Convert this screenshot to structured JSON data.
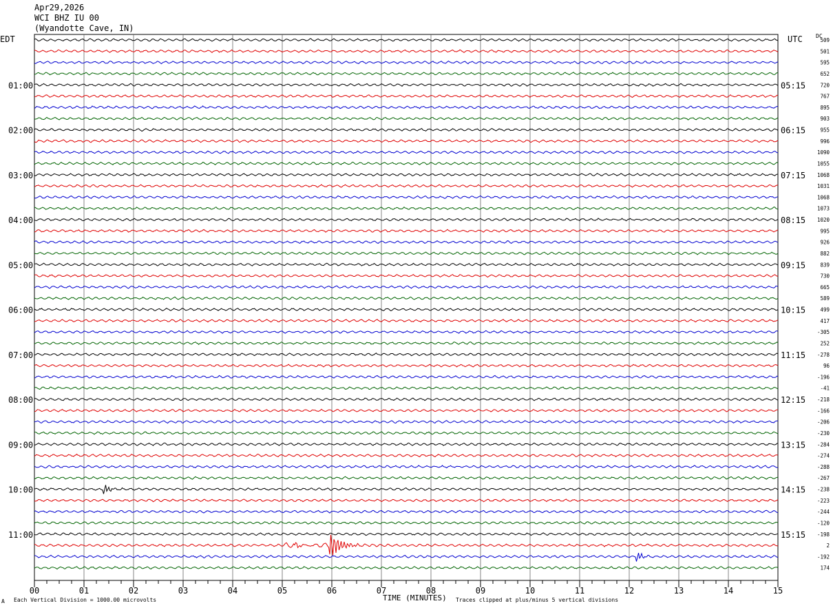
{
  "header": {
    "date": "Apr29,2026",
    "station": "WCI BHZ IU 00",
    "location": "(Wyandotte Cave, IN)"
  },
  "labels": {
    "left_tz": "EDT",
    "right_tz": "UTC",
    "dc": "DC"
  },
  "footer": {
    "mark": "A",
    "left": "Each Vertical Division = 1000.00 microvolts",
    "xlabel": "TIME (MINUTES)",
    "right": "Traces clipped at plus/minus 5 vertical divisions"
  },
  "chart_data": {
    "type": "line",
    "title": "WCI BHZ IU 00",
    "xlabel": "TIME (MINUTES)",
    "xlim": [
      0,
      15
    ],
    "x_ticks": [
      "00",
      "01",
      "02",
      "03",
      "04",
      "05",
      "06",
      "07",
      "08",
      "09",
      "10",
      "11",
      "12",
      "13",
      "14",
      "15"
    ],
    "left_hour_labels": [
      "01:00",
      "02:00",
      "03:00",
      "04:00",
      "05:00",
      "06:00",
      "07:00",
      "08:00",
      "09:00",
      "10:00",
      "11:00"
    ],
    "right_hour_labels": [
      "05:15",
      "06:15",
      "07:15",
      "08:15",
      "09:15",
      "10:15",
      "11:15",
      "12:15",
      "13:15",
      "14:15",
      "15:15"
    ],
    "trace_colors": [
      "#000000",
      "#e00000",
      "#0000d0",
      "#006400"
    ],
    "dc_offsets": [
      "509",
      "501",
      "595",
      "652",
      "720",
      "767",
      "895",
      "903",
      "955",
      "996",
      "1090",
      "1055",
      "1068",
      "1031",
      "1068",
      "1073",
      "1020",
      "995",
      "926",
      "882",
      "839",
      "730",
      "665",
      "589",
      "499",
      "417",
      "-305",
      "252",
      "-278",
      "96",
      "-196",
      "-41",
      "-218",
      "-166",
      "-206",
      "-230",
      "-284",
      "-274",
      "-288",
      "-267",
      "-238",
      "-223",
      "-244",
      "-120",
      "-198",
      "2",
      "-192",
      "174"
    ],
    "events": [
      {
        "trace": 40,
        "minute": 1.45,
        "amplitude": "moderate"
      },
      {
        "trace": 45,
        "minute": 6.0,
        "amplitude": "clipped"
      },
      {
        "trace": 45,
        "minute": 5.3,
        "amplitude": "small"
      },
      {
        "trace": 46,
        "minute": 12.2,
        "amplitude": "moderate"
      }
    ],
    "grid": true
  }
}
